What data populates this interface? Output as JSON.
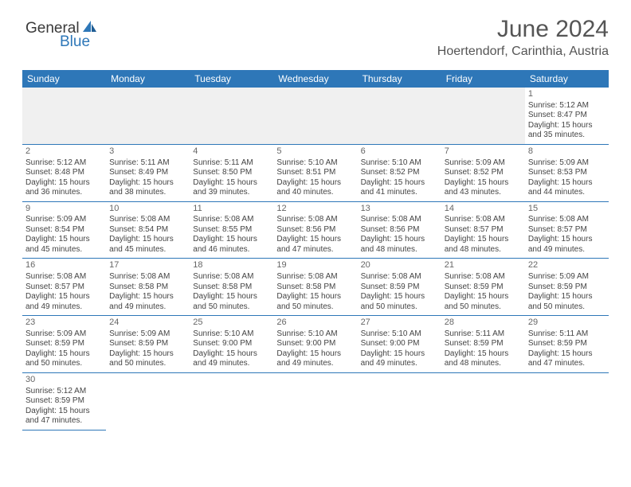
{
  "logo": {
    "general": "General",
    "blue": "Blue"
  },
  "header": {
    "month_title": "June 2024",
    "location": "Hoertendorf, Carinthia, Austria"
  },
  "colors": {
    "header_bg": "#2e77b8",
    "header_text": "#ffffff",
    "week1_bg": "#f0f0f0",
    "row_border": "#2e77b8",
    "text": "#444444"
  },
  "calendar": {
    "type": "table",
    "day_headers": [
      "Sunday",
      "Monday",
      "Tuesday",
      "Wednesday",
      "Thursday",
      "Friday",
      "Saturday"
    ],
    "weeks": [
      [
        null,
        null,
        null,
        null,
        null,
        null,
        {
          "n": "1",
          "sr": "Sunrise: 5:12 AM",
          "ss": "Sunset: 8:47 PM",
          "d1": "Daylight: 15 hours",
          "d2": "and 35 minutes."
        }
      ],
      [
        {
          "n": "2",
          "sr": "Sunrise: 5:12 AM",
          "ss": "Sunset: 8:48 PM",
          "d1": "Daylight: 15 hours",
          "d2": "and 36 minutes."
        },
        {
          "n": "3",
          "sr": "Sunrise: 5:11 AM",
          "ss": "Sunset: 8:49 PM",
          "d1": "Daylight: 15 hours",
          "d2": "and 38 minutes."
        },
        {
          "n": "4",
          "sr": "Sunrise: 5:11 AM",
          "ss": "Sunset: 8:50 PM",
          "d1": "Daylight: 15 hours",
          "d2": "and 39 minutes."
        },
        {
          "n": "5",
          "sr": "Sunrise: 5:10 AM",
          "ss": "Sunset: 8:51 PM",
          "d1": "Daylight: 15 hours",
          "d2": "and 40 minutes."
        },
        {
          "n": "6",
          "sr": "Sunrise: 5:10 AM",
          "ss": "Sunset: 8:52 PM",
          "d1": "Daylight: 15 hours",
          "d2": "and 41 minutes."
        },
        {
          "n": "7",
          "sr": "Sunrise: 5:09 AM",
          "ss": "Sunset: 8:52 PM",
          "d1": "Daylight: 15 hours",
          "d2": "and 43 minutes."
        },
        {
          "n": "8",
          "sr": "Sunrise: 5:09 AM",
          "ss": "Sunset: 8:53 PM",
          "d1": "Daylight: 15 hours",
          "d2": "and 44 minutes."
        }
      ],
      [
        {
          "n": "9",
          "sr": "Sunrise: 5:09 AM",
          "ss": "Sunset: 8:54 PM",
          "d1": "Daylight: 15 hours",
          "d2": "and 45 minutes."
        },
        {
          "n": "10",
          "sr": "Sunrise: 5:08 AM",
          "ss": "Sunset: 8:54 PM",
          "d1": "Daylight: 15 hours",
          "d2": "and 45 minutes."
        },
        {
          "n": "11",
          "sr": "Sunrise: 5:08 AM",
          "ss": "Sunset: 8:55 PM",
          "d1": "Daylight: 15 hours",
          "d2": "and 46 minutes."
        },
        {
          "n": "12",
          "sr": "Sunrise: 5:08 AM",
          "ss": "Sunset: 8:56 PM",
          "d1": "Daylight: 15 hours",
          "d2": "and 47 minutes."
        },
        {
          "n": "13",
          "sr": "Sunrise: 5:08 AM",
          "ss": "Sunset: 8:56 PM",
          "d1": "Daylight: 15 hours",
          "d2": "and 48 minutes."
        },
        {
          "n": "14",
          "sr": "Sunrise: 5:08 AM",
          "ss": "Sunset: 8:57 PM",
          "d1": "Daylight: 15 hours",
          "d2": "and 48 minutes."
        },
        {
          "n": "15",
          "sr": "Sunrise: 5:08 AM",
          "ss": "Sunset: 8:57 PM",
          "d1": "Daylight: 15 hours",
          "d2": "and 49 minutes."
        }
      ],
      [
        {
          "n": "16",
          "sr": "Sunrise: 5:08 AM",
          "ss": "Sunset: 8:57 PM",
          "d1": "Daylight: 15 hours",
          "d2": "and 49 minutes."
        },
        {
          "n": "17",
          "sr": "Sunrise: 5:08 AM",
          "ss": "Sunset: 8:58 PM",
          "d1": "Daylight: 15 hours",
          "d2": "and 49 minutes."
        },
        {
          "n": "18",
          "sr": "Sunrise: 5:08 AM",
          "ss": "Sunset: 8:58 PM",
          "d1": "Daylight: 15 hours",
          "d2": "and 50 minutes."
        },
        {
          "n": "19",
          "sr": "Sunrise: 5:08 AM",
          "ss": "Sunset: 8:58 PM",
          "d1": "Daylight: 15 hours",
          "d2": "and 50 minutes."
        },
        {
          "n": "20",
          "sr": "Sunrise: 5:08 AM",
          "ss": "Sunset: 8:59 PM",
          "d1": "Daylight: 15 hours",
          "d2": "and 50 minutes."
        },
        {
          "n": "21",
          "sr": "Sunrise: 5:08 AM",
          "ss": "Sunset: 8:59 PM",
          "d1": "Daylight: 15 hours",
          "d2": "and 50 minutes."
        },
        {
          "n": "22",
          "sr": "Sunrise: 5:09 AM",
          "ss": "Sunset: 8:59 PM",
          "d1": "Daylight: 15 hours",
          "d2": "and 50 minutes."
        }
      ],
      [
        {
          "n": "23",
          "sr": "Sunrise: 5:09 AM",
          "ss": "Sunset: 8:59 PM",
          "d1": "Daylight: 15 hours",
          "d2": "and 50 minutes."
        },
        {
          "n": "24",
          "sr": "Sunrise: 5:09 AM",
          "ss": "Sunset: 8:59 PM",
          "d1": "Daylight: 15 hours",
          "d2": "and 50 minutes."
        },
        {
          "n": "25",
          "sr": "Sunrise: 5:10 AM",
          "ss": "Sunset: 9:00 PM",
          "d1": "Daylight: 15 hours",
          "d2": "and 49 minutes."
        },
        {
          "n": "26",
          "sr": "Sunrise: 5:10 AM",
          "ss": "Sunset: 9:00 PM",
          "d1": "Daylight: 15 hours",
          "d2": "and 49 minutes."
        },
        {
          "n": "27",
          "sr": "Sunrise: 5:10 AM",
          "ss": "Sunset: 9:00 PM",
          "d1": "Daylight: 15 hours",
          "d2": "and 49 minutes."
        },
        {
          "n": "28",
          "sr": "Sunrise: 5:11 AM",
          "ss": "Sunset: 8:59 PM",
          "d1": "Daylight: 15 hours",
          "d2": "and 48 minutes."
        },
        {
          "n": "29",
          "sr": "Sunrise: 5:11 AM",
          "ss": "Sunset: 8:59 PM",
          "d1": "Daylight: 15 hours",
          "d2": "and 47 minutes."
        }
      ],
      [
        {
          "n": "30",
          "sr": "Sunrise: 5:12 AM",
          "ss": "Sunset: 8:59 PM",
          "d1": "Daylight: 15 hours",
          "d2": "and 47 minutes."
        },
        null,
        null,
        null,
        null,
        null,
        null
      ]
    ]
  }
}
